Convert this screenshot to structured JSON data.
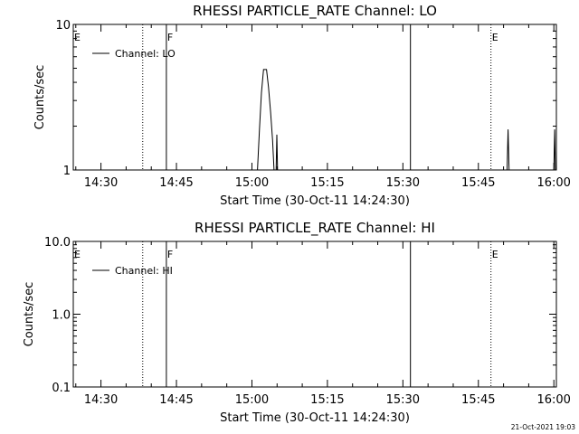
{
  "chart_data": [
    {
      "type": "line",
      "title": "RHESSI PARTICLE_RATE Channel: LO",
      "xlabel": "Start Time (30-Oct-11 14:24:30)",
      "ylabel": "Counts/sec",
      "y_scale": "log",
      "ylim": [
        1,
        10
      ],
      "xlim_minutes": [
        0,
        96
      ],
      "x_ticks": [
        {
          "label": "14:30",
          "minutes": 5.5
        },
        {
          "label": "14:45",
          "minutes": 20.5
        },
        {
          "label": "15:00",
          "minutes": 35.5
        },
        {
          "label": "15:15",
          "minutes": 50.5
        },
        {
          "label": "15:30",
          "minutes": 65.5
        },
        {
          "label": "15:45",
          "minutes": 80.5
        },
        {
          "label": "16:00",
          "minutes": 95.5
        }
      ],
      "y_ticks": [
        {
          "label": "10",
          "value": 10
        },
        {
          "label": "1",
          "value": 1
        }
      ],
      "legend": {
        "label": "Channel: LO",
        "position": "top-left"
      },
      "markers": [
        {
          "label": "E",
          "minutes": 0.0,
          "style": "none"
        },
        {
          "label": "",
          "minutes": 13.8,
          "style": "dotted"
        },
        {
          "label": "F",
          "minutes": 18.5,
          "style": "solid"
        },
        {
          "label": "",
          "minutes": 67.0,
          "style": "solid"
        },
        {
          "label": "E",
          "minutes": 83.0,
          "style": "dotted"
        },
        {
          "label": "",
          "minutes": 96.0,
          "style": "dotted"
        }
      ],
      "series": [
        {
          "name": "Channel: LO",
          "segments": [
            [
              [
                36.6,
                1
              ],
              [
                37.0,
                1.9
              ],
              [
                37.4,
                3.4
              ],
              [
                37.8,
                4.9
              ],
              [
                38.4,
                4.9
              ],
              [
                38.8,
                3.7
              ],
              [
                39.2,
                2.5
              ],
              [
                39.6,
                1.6
              ],
              [
                39.9,
                1
              ]
            ],
            [
              [
                40.3,
                1
              ],
              [
                40.45,
                1.75
              ],
              [
                40.6,
                1
              ]
            ],
            [
              [
                86.2,
                1
              ],
              [
                86.4,
                1.9
              ],
              [
                86.6,
                1
              ]
            ],
            [
              [
                95.5,
                1
              ],
              [
                95.65,
                1.9
              ],
              [
                95.8,
                1
              ]
            ]
          ]
        }
      ]
    },
    {
      "type": "line",
      "title": "RHESSI PARTICLE_RATE Channel: HI",
      "xlabel": "Start Time (30-Oct-11 14:24:30)",
      "ylabel": "Counts/sec",
      "y_scale": "log",
      "ylim": [
        0.1,
        10
      ],
      "xlim_minutes": [
        0,
        96
      ],
      "x_ticks": [
        {
          "label": "14:30",
          "minutes": 5.5
        },
        {
          "label": "14:45",
          "minutes": 20.5
        },
        {
          "label": "15:00",
          "minutes": 35.5
        },
        {
          "label": "15:15",
          "minutes": 50.5
        },
        {
          "label": "15:30",
          "minutes": 65.5
        },
        {
          "label": "15:45",
          "minutes": 80.5
        },
        {
          "label": "16:00",
          "minutes": 95.5
        }
      ],
      "y_ticks": [
        {
          "label": "10.0",
          "value": 10
        },
        {
          "label": "1.0",
          "value": 1
        },
        {
          "label": "0.1",
          "value": 0.1
        }
      ],
      "legend": {
        "label": "Channel: HI",
        "position": "top-left"
      },
      "markers": [
        {
          "label": "E",
          "minutes": 0.0,
          "style": "none"
        },
        {
          "label": "",
          "minutes": 13.8,
          "style": "dotted"
        },
        {
          "label": "F",
          "minutes": 18.5,
          "style": "solid"
        },
        {
          "label": "",
          "minutes": 67.0,
          "style": "solid"
        },
        {
          "label": "E",
          "minutes": 83.0,
          "style": "dotted"
        },
        {
          "label": "",
          "minutes": 96.0,
          "style": "dotted"
        }
      ],
      "series": [
        {
          "name": "Channel: HI",
          "segments": []
        }
      ]
    }
  ],
  "footer": {
    "timestamp": "21-Oct-2021 19:03"
  }
}
